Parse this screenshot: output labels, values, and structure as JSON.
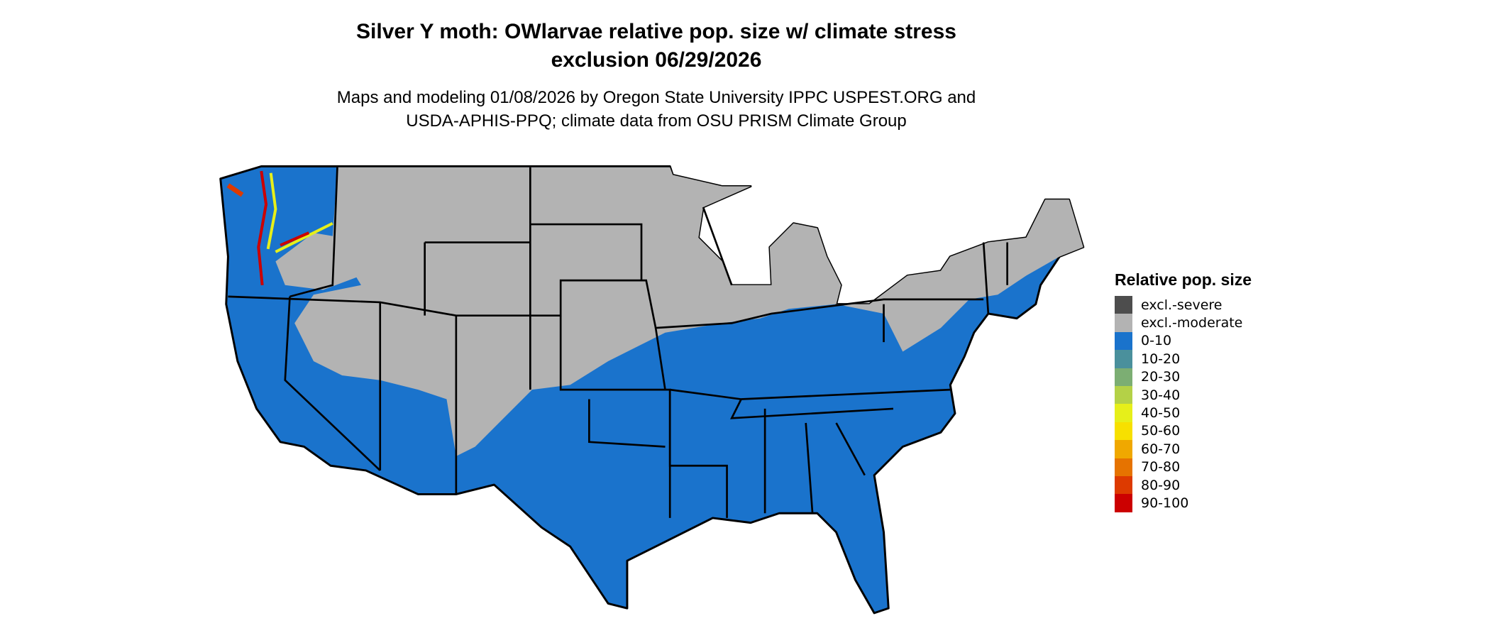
{
  "title_line1": "Silver Y moth: OWlarvae relative pop. size w/ climate stress",
  "title_line2": "exclusion 06/29/2026",
  "subtitle_line1": "Maps and modeling 01/08/2026 by Oregon State University IPPC USPEST.ORG and",
  "subtitle_line2": "USDA-APHIS-PPQ; climate data from OSU PRISM Climate Group",
  "legend": {
    "title": "Relative pop. size",
    "items": [
      {
        "label": "excl.-severe",
        "color": "#4d4d4d"
      },
      {
        "label": "excl.-moderate",
        "color": "#b3b3b3"
      },
      {
        "label": "0-10",
        "color": "#1a73cc"
      },
      {
        "label": "10-20",
        "color": "#4a909c"
      },
      {
        "label": "20-30",
        "color": "#7cae73"
      },
      {
        "label": "30-40",
        "color": "#b4d147"
      },
      {
        "label": "40-50",
        "color": "#e6ef1a"
      },
      {
        "label": "50-60",
        "color": "#f7e000"
      },
      {
        "label": "60-70",
        "color": "#f0a800"
      },
      {
        "label": "70-80",
        "color": "#e67300"
      },
      {
        "label": "80-90",
        "color": "#dd3a00"
      },
      {
        "label": "90-100",
        "color": "#cc0000"
      }
    ]
  }
}
